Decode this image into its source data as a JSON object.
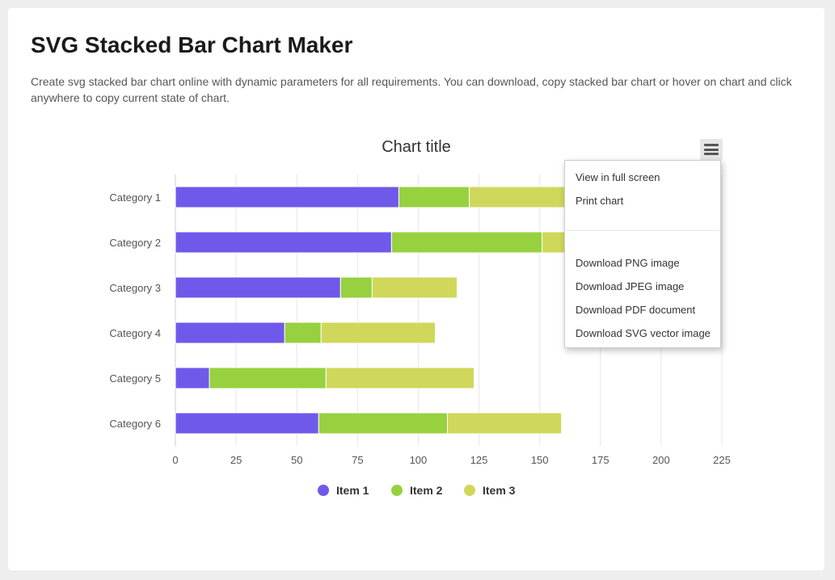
{
  "page": {
    "title": "SVG Stacked Bar Chart Maker",
    "description": "Create svg stacked bar chart online with dynamic parameters for all requirements. You can download, copy stacked bar chart or hover on chart and click anywhere to copy current state of chart."
  },
  "chart_data": {
    "type": "bar",
    "orientation": "horizontal",
    "stacked": true,
    "title": "Chart title",
    "categories": [
      "Category 1",
      "Category 2",
      "Category 3",
      "Category 4",
      "Category 5",
      "Category 6"
    ],
    "series": [
      {
        "name": "Item 1",
        "color": "#6f59ea",
        "values": [
          92,
          89,
          68,
          45,
          14,
          59
        ]
      },
      {
        "name": "Item 2",
        "color": "#98d13f",
        "values": [
          29,
          62,
          13,
          15,
          48,
          53
        ]
      },
      {
        "name": "Item 3",
        "color": "#cfd85a",
        "values": [
          51,
          26,
          35,
          47,
          61,
          47
        ]
      }
    ],
    "xlim": [
      0,
      225
    ],
    "xticks": [
      0,
      25,
      50,
      75,
      100,
      125,
      150,
      175,
      200,
      225
    ],
    "grid": true,
    "legend": "bottom-center"
  },
  "menu": {
    "button_icon": "hamburger-icon",
    "items": {
      "full_screen": "View in full screen",
      "print": "Print chart",
      "png": "Download PNG image",
      "jpeg": "Download JPEG image",
      "pdf": "Download PDF document",
      "svg": "Download SVG vector image"
    }
  }
}
